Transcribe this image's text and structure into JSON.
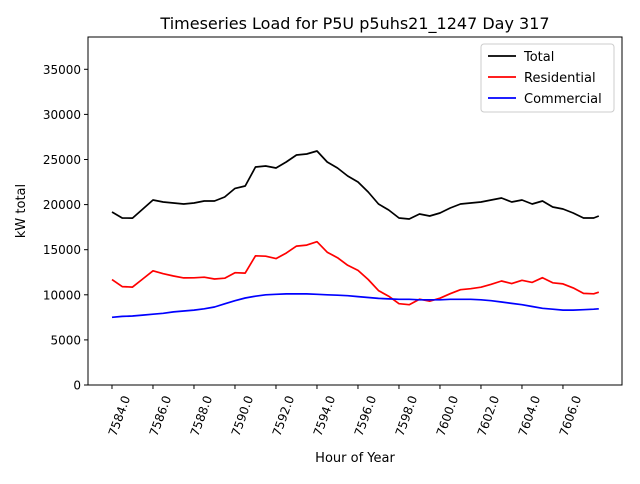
{
  "chart_data": {
    "type": "line",
    "title": "Timeseries Load for P5U p5uhs21_1247  Day 317",
    "xlabel": "Hour of Year",
    "ylabel": "kW total",
    "xlim": [
      7582.83,
      7608.88
    ],
    "ylim": [
      0,
      38580
    ],
    "grid": false,
    "legend_position": "top-right",
    "xticks": [
      "7584.0",
      "7586.0",
      "7588.0",
      "7590.0",
      "7592.0",
      "7594.0",
      "7596.0",
      "7598.0",
      "7600.0",
      "7602.0",
      "7604.0",
      "7606.0"
    ],
    "xtick_values": [
      7584,
      7586,
      7588,
      7590,
      7592,
      7594,
      7596,
      7598,
      7600,
      7602,
      7604,
      7606
    ],
    "yticks": [
      "0",
      "5000",
      "10000",
      "15000",
      "20000",
      "25000",
      "30000",
      "35000"
    ],
    "ytick_values": [
      0,
      5000,
      10000,
      15000,
      20000,
      25000,
      30000,
      35000
    ],
    "x": [
      7584,
      7584.5,
      7585,
      7585.5,
      7586,
      7586.5,
      7587,
      7587.5,
      7588,
      7588.5,
      7589,
      7589.5,
      7590,
      7590.5,
      7591,
      7591.5,
      7592,
      7592.5,
      7593,
      7593.5,
      7594,
      7594.5,
      7595,
      7595.5,
      7596,
      7596.5,
      7597,
      7597.5,
      7598,
      7598.5,
      7599,
      7599.5,
      7600,
      7600.5,
      7601,
      7601.5,
      7602,
      7602.5,
      7603,
      7603.5,
      7604,
      7604.5,
      7605,
      7605.5,
      7606,
      7606.5,
      7607,
      7607.5,
      7607.75
    ],
    "series": [
      {
        "name": "Total",
        "color": "#000000",
        "values": [
          19180,
          18510,
          18500,
          19500,
          20510,
          20290,
          20180,
          20070,
          20180,
          20400,
          20400,
          20840,
          21800,
          22060,
          24170,
          24280,
          24060,
          24720,
          25500,
          25610,
          25940,
          24720,
          24060,
          23170,
          22500,
          21400,
          20070,
          19400,
          18510,
          18400,
          18960,
          18740,
          19070,
          19620,
          20070,
          20180,
          20290,
          20510,
          20730,
          20290,
          20510,
          20070,
          20400,
          19730,
          19510,
          19070,
          18510,
          18510,
          18740
        ]
      },
      {
        "name": "Residential",
        "color": "#ff0000",
        "values": [
          11680,
          10910,
          10850,
          11750,
          12660,
          12340,
          12080,
          11870,
          11880,
          11950,
          11750,
          11840,
          12450,
          12410,
          14320,
          14280,
          14010,
          14620,
          15400,
          15510,
          15890,
          14720,
          14110,
          13270,
          12700,
          11700,
          10470,
          9850,
          9010,
          8900,
          9510,
          9290,
          9620,
          10120,
          10570,
          10680,
          10840,
          11160,
          11530,
          11240,
          11610,
          11370,
          11900,
          11330,
          11210,
          10770,
          10160,
          10110,
          10290
        ]
      },
      {
        "name": "Commercial",
        "color": "#0000ff",
        "values": [
          7500,
          7600,
          7650,
          7750,
          7850,
          7950,
          8100,
          8200,
          8300,
          8450,
          8650,
          9000,
          9350,
          9650,
          9850,
          10000,
          10050,
          10100,
          10100,
          10100,
          10050,
          10000,
          9950,
          9900,
          9800,
          9700,
          9600,
          9550,
          9500,
          9500,
          9450,
          9450,
          9450,
          9500,
          9500,
          9500,
          9450,
          9350,
          9200,
          9050,
          8900,
          8700,
          8500,
          8400,
          8300,
          8300,
          8350,
          8400,
          8450
        ]
      }
    ]
  }
}
